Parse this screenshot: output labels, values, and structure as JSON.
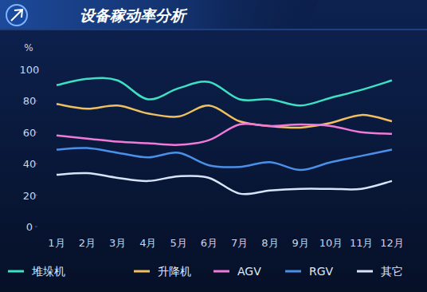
{
  "chart_data": {
    "type": "line",
    "title": "设备稼动率分析",
    "y_label": "%",
    "categories": [
      "1月",
      "2月",
      "3月",
      "4月",
      "5月",
      "6月",
      "7月",
      "8月",
      "9月",
      "10月",
      "11月",
      "12月"
    ],
    "ylim": [
      0,
      100
    ],
    "yticks": [
      0,
      20,
      40,
      60,
      80,
      100
    ],
    "grid": false,
    "legend": "bottom",
    "series": [
      {
        "name": "堆垛机",
        "color": "#3ee0c4",
        "values": [
          90,
          94,
          93,
          81,
          88,
          92,
          81,
          81,
          77,
          82,
          87,
          93
        ]
      },
      {
        "name": "升降机",
        "color": "#f0c060",
        "values": [
          78,
          75,
          77,
          72,
          70,
          77,
          67,
          64,
          63,
          66,
          71,
          67
        ]
      },
      {
        "name": "AGV",
        "color": "#f07ad8",
        "values": [
          58,
          56,
          54,
          53,
          52,
          55,
          65,
          64,
          65,
          64,
          60,
          59
        ]
      },
      {
        "name": "RGV",
        "color": "#4a90e8",
        "values": [
          49,
          50,
          47,
          44,
          47,
          39,
          38,
          41,
          36,
          41,
          45,
          49
        ]
      },
      {
        "name": "其它",
        "color": "#d8e4f8",
        "values": [
          33,
          34,
          31,
          29,
          32,
          31,
          21,
          23,
          24,
          24,
          24,
          29
        ]
      }
    ]
  }
}
